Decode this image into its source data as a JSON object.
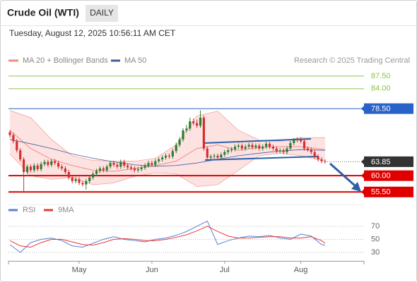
{
  "header": {
    "title": "Crude Oil (WTI)",
    "timeframe": "DAILY",
    "date": "Tuesday, August 12, 2025 10:56:11 AM CET",
    "source": "Research © 2025 Trading Central"
  },
  "chart_data": [
    {
      "type": "candlestick",
      "categories": [
        null,
        null,
        null,
        null,
        null,
        null,
        null,
        null,
        null,
        null,
        null,
        null,
        null,
        null,
        null,
        null,
        null,
        null,
        null,
        null,
        "May",
        null,
        null,
        null,
        null,
        null,
        null,
        null,
        null,
        null,
        null,
        null,
        null,
        null,
        null,
        null,
        null,
        null,
        null,
        null,
        null,
        "Jun",
        null,
        null,
        null,
        null,
        null,
        null,
        null,
        null,
        null,
        null,
        null,
        null,
        null,
        null,
        null,
        null,
        null,
        null,
        null,
        null,
        "Jul",
        null,
        null,
        null,
        null,
        null,
        null,
        null,
        null,
        null,
        null,
        null,
        null,
        null,
        null,
        null,
        null,
        null,
        null,
        null,
        null,
        null,
        "Aug",
        null,
        null,
        null,
        null,
        null,
        null,
        null
      ],
      "open": [
        72.0,
        71.2,
        69.5,
        67.0,
        64.5,
        61.0,
        62.5,
        61.5,
        62.8,
        61.8,
        63.2,
        63.8,
        63.0,
        64.0,
        63.5,
        62.5,
        62.0,
        61.0,
        59.5,
        58.5,
        59.0,
        58.0,
        57.6,
        58.5,
        59.5,
        60.5,
        61.3,
        62.0,
        61.5,
        62.5,
        63.5,
        63.0,
        62.5,
        63.8,
        62.8,
        62.3,
        62.0,
        61.5,
        61.8,
        62.2,
        62.8,
        63.5,
        63.0,
        64.0,
        64.5,
        65.0,
        65.5,
        65.3,
        66.8,
        68.5,
        70.0,
        72.5,
        73.0,
        75.0,
        74.5,
        73.8,
        76.0,
        67.5,
        65.0,
        65.3,
        65.5,
        65.0,
        65.8,
        66.5,
        67.0,
        67.3,
        68.0,
        68.3,
        67.5,
        68.0,
        68.5,
        67.8,
        68.3,
        67.5,
        68.0,
        68.8,
        68.0,
        67.5,
        66.8,
        67.0,
        66.5,
        67.5,
        69.0,
        69.8,
        70.0,
        69.5,
        67.5,
        67.2,
        66.5,
        65.3,
        64.5,
        64.0
      ],
      "high": [
        72.6,
        71.8,
        70.1,
        67.6,
        65.1,
        63.1,
        63.1,
        63.4,
        63.4,
        63.8,
        64.4,
        64.4,
        64.6,
        64.6,
        64.1,
        63.1,
        62.6,
        61.6,
        60.1,
        59.6,
        59.6,
        58.6,
        59.1,
        60.1,
        61.1,
        61.9,
        62.6,
        62.6,
        63.1,
        64.1,
        64.1,
        63.6,
        64.4,
        64.4,
        63.4,
        62.9,
        62.6,
        62.4,
        62.8,
        63.4,
        64.1,
        64.1,
        64.6,
        65.1,
        65.6,
        66.1,
        66.1,
        67.4,
        69.1,
        70.6,
        73.1,
        74.0,
        76.0,
        75.8,
        75.5,
        78.0,
        76.6,
        68.1,
        65.9,
        66.1,
        66.1,
        66.4,
        67.1,
        67.6,
        67.9,
        68.6,
        68.9,
        68.9,
        68.6,
        69.1,
        69.1,
        68.9,
        68.9,
        68.6,
        69.4,
        69.4,
        68.6,
        68.1,
        67.6,
        67.6,
        68.1,
        69.6,
        70.4,
        70.6,
        70.6,
        70.1,
        68.1,
        67.8,
        67.1,
        65.9,
        65.1,
        64.5
      ],
      "low": [
        70.6,
        68.9,
        66.4,
        63.9,
        55.5,
        60.4,
        60.9,
        60.9,
        61.2,
        61.2,
        62.6,
        62.4,
        62.4,
        62.9,
        61.9,
        61.4,
        60.4,
        58.9,
        57.9,
        57.9,
        57.4,
        57.0,
        56.2,
        57.9,
        58.9,
        59.9,
        60.7,
        60.9,
        60.9,
        61.9,
        62.4,
        61.9,
        61.9,
        62.2,
        61.7,
        61.4,
        60.9,
        60.9,
        61.2,
        61.6,
        62.2,
        62.4,
        62.4,
        63.4,
        63.9,
        64.4,
        64.7,
        64.7,
        66.2,
        67.9,
        69.4,
        71.9,
        72.4,
        73.9,
        73.2,
        73.2,
        66.9,
        64.4,
        64.4,
        64.7,
        64.4,
        64.4,
        65.2,
        65.9,
        66.4,
        66.7,
        67.4,
        66.9,
        66.9,
        67.4,
        67.2,
        67.2,
        66.9,
        66.9,
        67.4,
        67.4,
        66.9,
        66.2,
        66.2,
        65.9,
        65.9,
        66.9,
        68.4,
        69.2,
        68.9,
        66.9,
        66.6,
        65.9,
        64.7,
        63.9,
        63.4,
        63.3
      ],
      "close": [
        71.2,
        69.5,
        67.0,
        64.5,
        61.0,
        62.5,
        61.5,
        62.8,
        61.8,
        63.2,
        63.8,
        63.0,
        64.0,
        63.5,
        62.5,
        62.0,
        61.0,
        59.5,
        58.5,
        59.0,
        58.0,
        57.6,
        58.5,
        59.5,
        60.5,
        61.3,
        62.0,
        61.5,
        62.5,
        63.5,
        63.0,
        62.5,
        63.8,
        62.8,
        62.3,
        62.0,
        61.5,
        61.8,
        62.2,
        62.8,
        63.5,
        63.0,
        64.0,
        64.5,
        65.0,
        65.5,
        65.3,
        66.8,
        68.5,
        70.0,
        72.5,
        73.0,
        75.0,
        74.5,
        73.8,
        76.0,
        67.5,
        65.0,
        65.3,
        65.5,
        65.0,
        65.8,
        66.5,
        67.0,
        67.3,
        68.0,
        68.3,
        67.5,
        68.0,
        68.5,
        67.8,
        68.3,
        67.5,
        68.0,
        68.8,
        68.0,
        67.5,
        66.8,
        67.0,
        66.5,
        67.5,
        69.0,
        69.8,
        70.0,
        69.5,
        67.5,
        67.2,
        66.5,
        65.3,
        64.5,
        64.0,
        63.85
      ],
      "up_color": "#2e7d32",
      "down_color": "#d32f2f",
      "ylim": [
        54,
        90
      ],
      "levels": [
        {
          "value": 87.5,
          "label": "87.50",
          "color": "#8bc34a",
          "label_style": "text",
          "line_style": "solid"
        },
        {
          "value": 84.0,
          "label": "84.00",
          "color": "#8bc34a",
          "label_style": "text",
          "line_style": "solid"
        },
        {
          "value": 78.5,
          "label": "78.50",
          "color": "#2962c8",
          "label_style": "box",
          "line_style": "solid"
        },
        {
          "value": 63.85,
          "label": "63.85",
          "color": "#333333",
          "label_style": "box",
          "line_style": "dotted"
        },
        {
          "value": 60.0,
          "label": "60.00",
          "color": "#e00000",
          "label_style": "box",
          "line_style": "bold"
        },
        {
          "value": 55.5,
          "label": "55.50",
          "color": "#e00000",
          "label_style": "box",
          "line_style": "bold"
        }
      ],
      "bollinger": {
        "name": "MA 20 + Bollinger Bands",
        "color": "#f28b82",
        "fill": "#fde2e2",
        "x": [
          0,
          6,
          12,
          18,
          24,
          30,
          36,
          42,
          48,
          54,
          60,
          66,
          72,
          78,
          84,
          91
        ],
        "ma": [
          72.5,
          67.5,
          64.5,
          62.8,
          61.5,
          61.2,
          62.0,
          62.8,
          64.0,
          67.5,
          68.5,
          67.0,
          67.8,
          68.0,
          68.0,
          67.2
        ],
        "upper": [
          78.0,
          76.0,
          70.0,
          65.5,
          64.2,
          64.0,
          64.0,
          64.8,
          68.5,
          76.5,
          77.8,
          72.5,
          69.8,
          69.5,
          70.5,
          70.5
        ],
        "lower": [
          66.0,
          60.0,
          59.0,
          59.5,
          57.5,
          58.0,
          59.8,
          60.8,
          60.5,
          57.0,
          57.5,
          61.5,
          65.5,
          66.2,
          65.5,
          64.0
        ]
      },
      "ma50": {
        "name": "MA 50",
        "color": "#3f5d9a",
        "x": [
          0,
          6,
          12,
          18,
          24,
          30,
          36,
          42,
          48,
          54,
          60,
          66,
          72,
          78,
          84,
          91
        ],
        "values": [
          70.0,
          68.8,
          67.5,
          66.0,
          64.8,
          63.8,
          63.0,
          62.6,
          62.8,
          63.5,
          64.5,
          65.5,
          66.2,
          66.8,
          67.2,
          67.0
        ]
      }
    },
    {
      "type": "line",
      "x": [
        0,
        3,
        6,
        9,
        12,
        15,
        18,
        21,
        24,
        27,
        30,
        33,
        36,
        39,
        42,
        45,
        48,
        51,
        54,
        57,
        60,
        63,
        66,
        69,
        72,
        75,
        78,
        81,
        84,
        87,
        90,
        91
      ],
      "series": [
        {
          "name": "RSI",
          "color": "#5b7fd6",
          "values": [
            42,
            30,
            45,
            50,
            52,
            48,
            40,
            38,
            44,
            50,
            54,
            50,
            48,
            46,
            50,
            52,
            56,
            62,
            70,
            78,
            42,
            48,
            52,
            55,
            54,
            56,
            52,
            50,
            58,
            55,
            42,
            41
          ]
        },
        {
          "name": "9MA",
          "color": "#e53935",
          "values": [
            48,
            40,
            38,
            45,
            50,
            50,
            46,
            42,
            41,
            45,
            50,
            51,
            50,
            48,
            48,
            50,
            53,
            57,
            63,
            70,
            62,
            55,
            52,
            52,
            53,
            54,
            54,
            52,
            52,
            54,
            48,
            44
          ]
        }
      ],
      "ylim": [
        17,
        84
      ],
      "yticks": [
        70,
        50,
        30
      ]
    }
  ]
}
